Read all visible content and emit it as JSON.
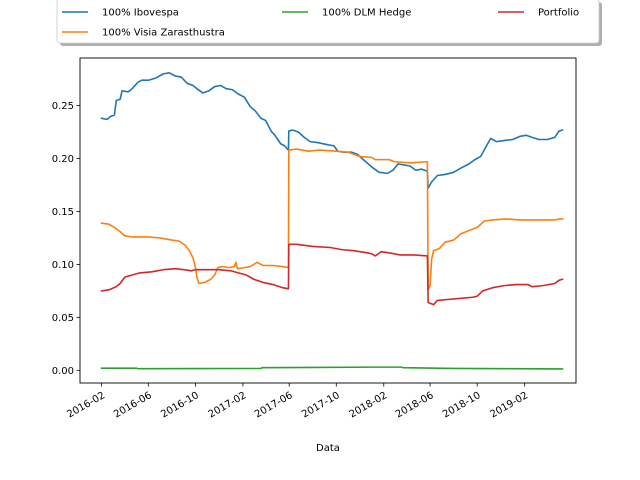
{
  "chart_data": {
    "type": "line",
    "title": "",
    "xlabel": "Data",
    "ylabel": "",
    "ylim": [
      -0.012,
      0.295
    ],
    "xlim": [
      "2015-12-07",
      "2019-06-14"
    ],
    "grid": false,
    "legend": {
      "placement": "top-center",
      "columns": 3,
      "shadow": true
    },
    "y_ticks": [
      "0.00",
      "0.05",
      "0.10",
      "0.15",
      "0.20",
      "0.25"
    ],
    "y_tick_values": [
      0.0,
      0.05,
      0.1,
      0.15,
      0.2,
      0.25
    ],
    "x_ticks": [
      "2016-02",
      "2016-06",
      "2016-10",
      "2017-02",
      "2017-06",
      "2017-10",
      "2018-02",
      "2018-06",
      "2018-10",
      "2019-02"
    ],
    "x_tick_values": [
      "2016-02-01",
      "2016-06-01",
      "2016-10-01",
      "2017-02-01",
      "2017-06-01",
      "2017-10-01",
      "2018-02-01",
      "2018-06-01",
      "2018-10-01",
      "2019-02-01"
    ],
    "series": [
      {
        "name": "100% Ibovespa",
        "color": "#1f77b4",
        "points": [
          [
            "2016-02-01",
            0.238
          ],
          [
            "2016-02-15",
            0.237
          ],
          [
            "2016-02-25",
            0.24
          ],
          [
            "2016-03-05",
            0.241
          ],
          [
            "2016-03-10",
            0.255
          ],
          [
            "2016-03-20",
            0.256
          ],
          [
            "2016-03-25",
            0.264
          ],
          [
            "2016-04-10",
            0.263
          ],
          [
            "2016-04-20",
            0.266
          ],
          [
            "2016-05-05",
            0.272
          ],
          [
            "2016-05-15",
            0.274
          ],
          [
            "2016-06-01",
            0.274
          ],
          [
            "2016-06-20",
            0.276
          ],
          [
            "2016-07-10",
            0.28
          ],
          [
            "2016-07-25",
            0.281
          ],
          [
            "2016-08-10",
            0.278
          ],
          [
            "2016-08-25",
            0.277
          ],
          [
            "2016-09-10",
            0.271
          ],
          [
            "2016-09-25",
            0.269
          ],
          [
            "2016-10-05",
            0.266
          ],
          [
            "2016-10-20",
            0.262
          ],
          [
            "2016-11-05",
            0.264
          ],
          [
            "2016-11-20",
            0.268
          ],
          [
            "2016-12-05",
            0.269
          ],
          [
            "2016-12-20",
            0.266
          ],
          [
            "2017-01-05",
            0.265
          ],
          [
            "2017-01-20",
            0.261
          ],
          [
            "2017-02-05",
            0.258
          ],
          [
            "2017-02-20",
            0.249
          ],
          [
            "2017-03-05",
            0.245
          ],
          [
            "2017-03-20",
            0.238
          ],
          [
            "2017-04-01",
            0.236
          ],
          [
            "2017-04-15",
            0.226
          ],
          [
            "2017-04-25",
            0.222
          ],
          [
            "2017-05-10",
            0.214
          ],
          [
            "2017-05-20",
            0.212
          ],
          [
            "2017-05-30",
            0.208
          ],
          [
            "2017-05-31",
            0.226
          ],
          [
            "2017-06-10",
            0.227
          ],
          [
            "2017-06-25",
            0.225
          ],
          [
            "2017-07-10",
            0.22
          ],
          [
            "2017-07-25",
            0.216
          ],
          [
            "2017-08-15",
            0.215
          ],
          [
            "2017-09-10",
            0.213
          ],
          [
            "2017-09-25",
            0.212
          ],
          [
            "2017-10-05",
            0.207
          ],
          [
            "2017-10-20",
            0.206
          ],
          [
            "2017-11-10",
            0.206
          ],
          [
            "2017-11-25",
            0.204
          ],
          [
            "2017-12-10",
            0.199
          ],
          [
            "2018-01-01",
            0.192
          ],
          [
            "2018-01-20",
            0.187
          ],
          [
            "2018-02-10",
            0.186
          ],
          [
            "2018-02-25",
            0.189
          ],
          [
            "2018-03-10",
            0.195
          ],
          [
            "2018-03-25",
            0.194
          ],
          [
            "2018-04-10",
            0.193
          ],
          [
            "2018-04-25",
            0.189
          ],
          [
            "2018-05-10",
            0.19
          ],
          [
            "2018-05-25",
            0.188
          ],
          [
            "2018-05-27",
            0.172
          ],
          [
            "2018-06-05",
            0.178
          ],
          [
            "2018-06-20",
            0.184
          ],
          [
            "2018-07-10",
            0.185
          ],
          [
            "2018-08-01",
            0.187
          ],
          [
            "2018-08-20",
            0.191
          ],
          [
            "2018-09-10",
            0.195
          ],
          [
            "2018-09-25",
            0.199
          ],
          [
            "2018-10-10",
            0.202
          ],
          [
            "2018-10-25",
            0.212
          ],
          [
            "2018-11-05",
            0.219
          ],
          [
            "2018-11-20",
            0.216
          ],
          [
            "2018-12-10",
            0.217
          ],
          [
            "2019-01-01",
            0.218
          ],
          [
            "2019-01-20",
            0.221
          ],
          [
            "2019-02-05",
            0.222
          ],
          [
            "2019-02-20",
            0.22
          ],
          [
            "2019-03-10",
            0.218
          ],
          [
            "2019-04-01",
            0.218
          ],
          [
            "2019-04-20",
            0.22
          ],
          [
            "2019-05-01",
            0.226
          ],
          [
            "2019-05-10",
            0.227
          ]
        ]
      },
      {
        "name": "100% Visia Zarasthustra",
        "color": "#ff7f0e",
        "points": [
          [
            "2016-02-01",
            0.139
          ],
          [
            "2016-02-20",
            0.138
          ],
          [
            "2016-03-05",
            0.135
          ],
          [
            "2016-03-20",
            0.131
          ],
          [
            "2016-04-01",
            0.127
          ],
          [
            "2016-04-20",
            0.126
          ],
          [
            "2016-06-01",
            0.126
          ],
          [
            "2016-07-01",
            0.125
          ],
          [
            "2016-08-01",
            0.123
          ],
          [
            "2016-08-20",
            0.122
          ],
          [
            "2016-09-05",
            0.118
          ],
          [
            "2016-09-15",
            0.113
          ],
          [
            "2016-09-25",
            0.106
          ],
          [
            "2016-10-01",
            0.097
          ],
          [
            "2016-10-05",
            0.088
          ],
          [
            "2016-10-10",
            0.082
          ],
          [
            "2016-10-25",
            0.083
          ],
          [
            "2016-11-10",
            0.086
          ],
          [
            "2016-11-20",
            0.09
          ],
          [
            "2016-11-28",
            0.097
          ],
          [
            "2016-12-10",
            0.098
          ],
          [
            "2016-12-25",
            0.097
          ],
          [
            "2017-01-10",
            0.098
          ],
          [
            "2017-01-14",
            0.102
          ],
          [
            "2017-01-18",
            0.096
          ],
          [
            "2017-02-05",
            0.097
          ],
          [
            "2017-02-20",
            0.098
          ],
          [
            "2017-03-10",
            0.102
          ],
          [
            "2017-03-25",
            0.099
          ],
          [
            "2017-04-20",
            0.099
          ],
          [
            "2017-05-15",
            0.098
          ],
          [
            "2017-05-30",
            0.097
          ],
          [
            "2017-05-31",
            0.208
          ],
          [
            "2017-06-20",
            0.209
          ],
          [
            "2017-07-20",
            0.207
          ],
          [
            "2017-08-20",
            0.208
          ],
          [
            "2017-10-01",
            0.207
          ],
          [
            "2017-11-01",
            0.206
          ],
          [
            "2017-12-01",
            0.202
          ],
          [
            "2018-01-01",
            0.201
          ],
          [
            "2018-01-10",
            0.199
          ],
          [
            "2018-02-15",
            0.199
          ],
          [
            "2018-03-01",
            0.197
          ],
          [
            "2018-04-10",
            0.196
          ],
          [
            "2018-05-25",
            0.197
          ],
          [
            "2018-05-27",
            0.076
          ],
          [
            "2018-06-01",
            0.08
          ],
          [
            "2018-06-05",
            0.105
          ],
          [
            "2018-06-10",
            0.113
          ],
          [
            "2018-06-25",
            0.115
          ],
          [
            "2018-07-10",
            0.121
          ],
          [
            "2018-08-01",
            0.123
          ],
          [
            "2018-08-20",
            0.129
          ],
          [
            "2018-09-10",
            0.132
          ],
          [
            "2018-10-01",
            0.135
          ],
          [
            "2018-10-20",
            0.141
          ],
          [
            "2018-11-10",
            0.142
          ],
          [
            "2018-12-15",
            0.143
          ],
          [
            "2019-01-20",
            0.142
          ],
          [
            "2019-02-10",
            0.142
          ],
          [
            "2019-03-10",
            0.142
          ],
          [
            "2019-04-20",
            0.142
          ],
          [
            "2019-05-01",
            0.143
          ],
          [
            "2019-05-10",
            0.143
          ]
        ]
      },
      {
        "name": "100% DLM Hedge",
        "color": "#2ca02c",
        "points": [
          [
            "2016-02-01",
            0.002
          ],
          [
            "2016-05-01",
            0.002
          ],
          [
            "2016-05-05",
            0.0015
          ],
          [
            "2016-10-01",
            0.0016
          ],
          [
            "2017-02-01",
            0.0017
          ],
          [
            "2017-03-20",
            0.0017
          ],
          [
            "2017-03-22",
            0.0025
          ],
          [
            "2017-08-01",
            0.0027
          ],
          [
            "2018-01-01",
            0.003
          ],
          [
            "2018-03-20",
            0.003
          ],
          [
            "2018-03-22",
            0.0025
          ],
          [
            "2018-08-01",
            0.0018
          ],
          [
            "2019-01-01",
            0.0015
          ],
          [
            "2019-05-10",
            0.0013
          ]
        ]
      },
      {
        "name": "Portfolio",
        "color": "#d62728",
        "points": [
          [
            "2016-02-01",
            0.075
          ],
          [
            "2016-02-20",
            0.076
          ],
          [
            "2016-03-10",
            0.079
          ],
          [
            "2016-03-20",
            0.082
          ],
          [
            "2016-04-01",
            0.088
          ],
          [
            "2016-04-20",
            0.09
          ],
          [
            "2016-05-10",
            0.092
          ],
          [
            "2016-06-10",
            0.093
          ],
          [
            "2016-07-10",
            0.095
          ],
          [
            "2016-08-10",
            0.096
          ],
          [
            "2016-09-01",
            0.095
          ],
          [
            "2016-09-20",
            0.094
          ],
          [
            "2016-10-01",
            0.095
          ],
          [
            "2016-11-01",
            0.095
          ],
          [
            "2016-12-01",
            0.095
          ],
          [
            "2017-01-01",
            0.094
          ],
          [
            "2017-01-20",
            0.092
          ],
          [
            "2017-02-10",
            0.09
          ],
          [
            "2017-03-01",
            0.086
          ],
          [
            "2017-03-25",
            0.083
          ],
          [
            "2017-04-20",
            0.081
          ],
          [
            "2017-05-15",
            0.078
          ],
          [
            "2017-05-30",
            0.077
          ],
          [
            "2017-05-31",
            0.119
          ],
          [
            "2017-06-20",
            0.119
          ],
          [
            "2017-08-01",
            0.117
          ],
          [
            "2017-09-15",
            0.116
          ],
          [
            "2017-10-15",
            0.114
          ],
          [
            "2017-11-15",
            0.113
          ],
          [
            "2017-12-20",
            0.111
          ],
          [
            "2018-01-01",
            0.11
          ],
          [
            "2018-01-10",
            0.108
          ],
          [
            "2018-01-25",
            0.112
          ],
          [
            "2018-02-15",
            0.111
          ],
          [
            "2018-03-15",
            0.109
          ],
          [
            "2018-04-20",
            0.109
          ],
          [
            "2018-05-25",
            0.108
          ],
          [
            "2018-05-27",
            0.064
          ],
          [
            "2018-06-10",
            0.062
          ],
          [
            "2018-06-20",
            0.066
          ],
          [
            "2018-07-20",
            0.067
          ],
          [
            "2018-08-20",
            0.068
          ],
          [
            "2018-09-20",
            0.069
          ],
          [
            "2018-10-01",
            0.07
          ],
          [
            "2018-10-15",
            0.075
          ],
          [
            "2018-11-10",
            0.078
          ],
          [
            "2018-12-10",
            0.08
          ],
          [
            "2019-01-10",
            0.081
          ],
          [
            "2019-02-10",
            0.081
          ],
          [
            "2019-02-20",
            0.079
          ],
          [
            "2019-03-20",
            0.08
          ],
          [
            "2019-04-20",
            0.082
          ],
          [
            "2019-05-01",
            0.085
          ],
          [
            "2019-05-10",
            0.086
          ]
        ]
      }
    ]
  }
}
